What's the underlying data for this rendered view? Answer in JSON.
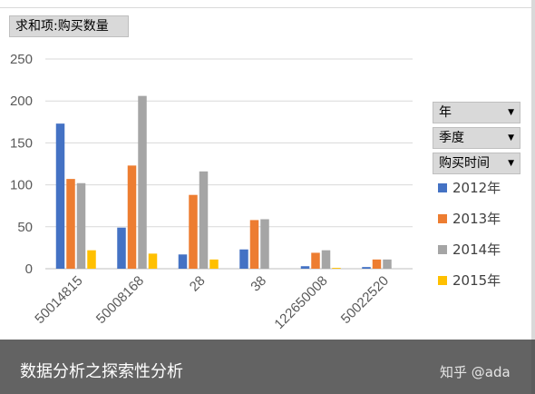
{
  "pivot": {
    "value_field": "求和项:购买数量",
    "filters": [
      {
        "label": "年"
      },
      {
        "label": "季度"
      },
      {
        "label": "购买时间"
      }
    ]
  },
  "chart_data": {
    "type": "bar",
    "categories": [
      "50014815",
      "50008168",
      "28",
      "38",
      "122650008",
      "50022520"
    ],
    "series": [
      {
        "name": "2012年",
        "color": "#4472C4",
        "values": [
          173,
          49,
          17,
          23,
          3,
          2
        ]
      },
      {
        "name": "2013年",
        "color": "#ED7D31",
        "values": [
          107,
          123,
          88,
          58,
          19,
          11
        ]
      },
      {
        "name": "2014年",
        "color": "#A5A5A5",
        "values": [
          102,
          206,
          116,
          59,
          22,
          11
        ]
      },
      {
        "name": "2015年",
        "color": "#FFC000",
        "values": [
          22,
          18,
          11,
          0,
          1,
          0
        ]
      }
    ],
    "ylim": [
      0,
      250
    ],
    "yticks": [
      0,
      50,
      100,
      150,
      200,
      250
    ],
    "grid": true,
    "legend_position": "right"
  },
  "caption": {
    "title": "数据分析之探索性分析",
    "watermark": "知乎 @ada"
  }
}
